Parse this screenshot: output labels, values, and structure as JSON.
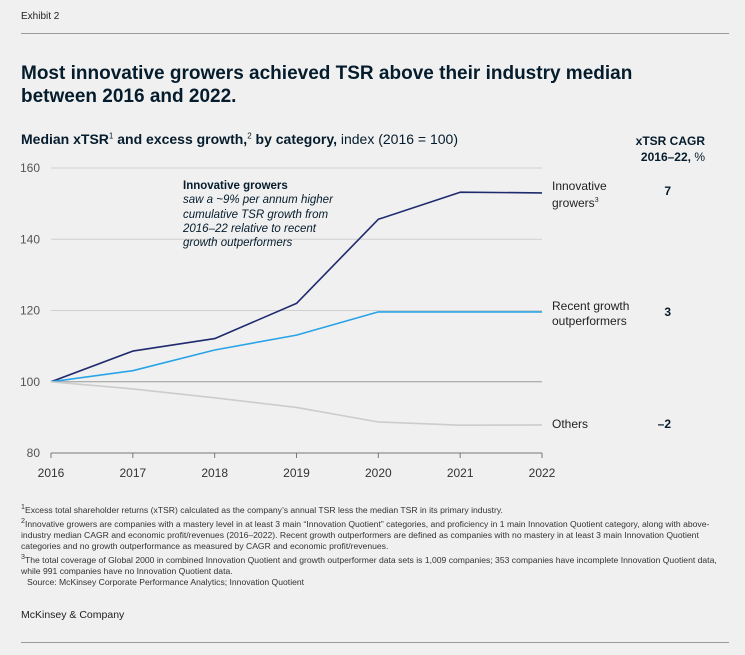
{
  "exhibit": "Exhibit 2",
  "title": "Most innovative growers achieved TSR above their industry median between 2016 and 2022.",
  "subtitle": {
    "bold_part": "Median xTSR",
    "sup1": "1",
    "bold_part2": " and excess growth,",
    "sup2": "2",
    "bold_part3": " by category,",
    "regular_part": " index (2016 = 100)"
  },
  "cagr_header": {
    "line1": "xTSR CAGR",
    "line2_bold": "2016–22,",
    "line2_regular": " %"
  },
  "annotation": {
    "title": "Innovative growers",
    "body": "saw a ~9% per annum higher cumulative TSR growth from 2016–22 relative to recent growth outperformers"
  },
  "series_labels": {
    "innovative_line1": "Innovative",
    "innovative_line2": "growers",
    "innovative_sup": "3",
    "recent_line1": "Recent growth",
    "recent_line2": "outperformers",
    "others": "Others"
  },
  "cagr_values": {
    "innovative": "7",
    "recent": "3",
    "others": "–2"
  },
  "footnotes": [
    {
      "sup": "1",
      "text": "Excess total shareholder returns (xTSR) calculated as the company’s annual TSR less the median TSR in its primary industry."
    },
    {
      "sup": "2",
      "text": "Innovative growers are companies with a mastery level in at least 3 main “Innovation Quotient” categories, and proficiency in 1 main Innovation Quotient category, along with above-industry median CAGR and economic profit/revenues (2016–2022). Recent growth outperformers are defined as companies with no mastery in at least 3 main Innovation Quotient categories and no growth outperformance as measured by CAGR and economic profit/revenues."
    },
    {
      "sup": "3",
      "text": "The total coverage of Global 2000 in combined Innovation Quotient and growth outperformer data sets is 1,009 companies; 353 companies have incomplete Innovation Quotient data, while 991 companies have no Innovation Quotient data."
    }
  ],
  "source": "Source: McKinsey Corporate Performance Analytics; Innovation Quotient",
  "brand": "McKinsey & Company",
  "colors": {
    "innovative": "#1f2a6e",
    "recent": "#29a3e8",
    "others": "#cccccc",
    "text": "#051c2c"
  },
  "chart_data": {
    "type": "line",
    "title": "Median xTSR and excess growth, by category",
    "ylabel": "index (2016 = 100)",
    "xlabel": "",
    "x": [
      2016,
      2017,
      2018,
      2019,
      2020,
      2021,
      2022
    ],
    "x_tick_labels": [
      "2016",
      "2017",
      "2018",
      "2019",
      "2020",
      "2021",
      "2022"
    ],
    "ylim": [
      80,
      160
    ],
    "y_ticks": [
      80,
      100,
      120,
      140,
      160
    ],
    "y_tick_labels": [
      "80",
      "100",
      "120",
      "140",
      "160"
    ],
    "series": [
      {
        "name": "Innovative growers",
        "key": "innovative",
        "values": [
          100,
          108.6,
          112.1,
          122.0,
          145.6,
          153.2,
          153.0
        ]
      },
      {
        "name": "Recent growth outperformers",
        "key": "recent",
        "values": [
          100,
          103.1,
          108.9,
          113.1,
          119.6,
          119.6,
          119.6
        ]
      },
      {
        "name": "Others",
        "key": "others",
        "values": [
          100,
          98.0,
          95.5,
          92.8,
          88.7,
          87.8,
          87.9
        ]
      }
    ],
    "grid": "horizontal",
    "legend": "inline-right"
  }
}
